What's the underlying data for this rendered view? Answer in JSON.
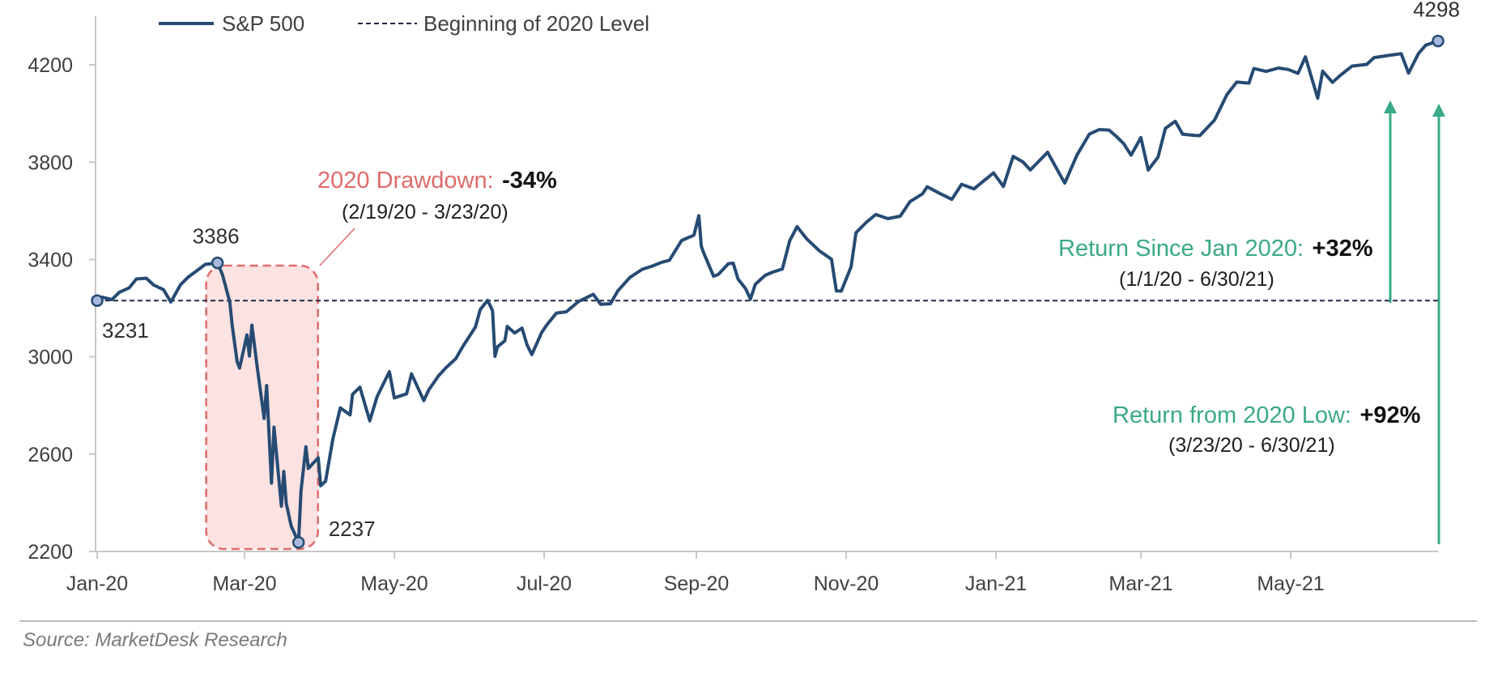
{
  "legend": {
    "series_label": "S&P 500",
    "baseline_label": "Beginning of 2020 Level"
  },
  "source": "Source: MarketDesk Research",
  "colors": {
    "line": "#264b73",
    "baseline": "#1f2a44",
    "drawdown_fill": "#fde2e2",
    "drawdown_stroke": "#e06b6b",
    "green": "#3aa988",
    "marker_fill": "#a8b8dc"
  },
  "annotations": {
    "drawdown": {
      "title": "2020 Drawdown:",
      "value": "-34%",
      "range": "(2/19/20 - 3/23/20)"
    },
    "since_jan": {
      "title": "Return Since Jan 2020:",
      "value": "+32%",
      "range": "(1/1/20 - 6/30/21)"
    },
    "from_low": {
      "title": "Return from 2020 Low:",
      "value": "+92%",
      "range": "(3/23/20 - 6/30/21)"
    }
  },
  "chart_data": {
    "type": "line",
    "ylim": [
      2200,
      4400
    ],
    "yticks": [
      2200,
      2600,
      3000,
      3400,
      3800,
      4200
    ],
    "xlim": [
      "2020-01-01",
      "2021-06-30"
    ],
    "xticks": [
      {
        "date": "2020-01-01",
        "label": "Jan-20"
      },
      {
        "date": "2020-03-01",
        "label": "Mar-20"
      },
      {
        "date": "2020-05-01",
        "label": "May-20"
      },
      {
        "date": "2020-07-01",
        "label": "Jul-20"
      },
      {
        "date": "2020-09-01",
        "label": "Sep-20"
      },
      {
        "date": "2020-11-01",
        "label": "Nov-20"
      },
      {
        "date": "2021-01-01",
        "label": "Jan-21"
      },
      {
        "date": "2021-03-01",
        "label": "Mar-21"
      },
      {
        "date": "2021-05-01",
        "label": "May-21"
      }
    ],
    "baseline": 3231,
    "labeled_points": [
      {
        "date": "2020-01-01",
        "value": 3231,
        "label": "3231"
      },
      {
        "date": "2020-02-19",
        "value": 3386,
        "label": "3386"
      },
      {
        "date": "2020-03-23",
        "value": 2237,
        "label": "2237"
      },
      {
        "date": "2021-06-30",
        "value": 4298,
        "label": "4298"
      }
    ],
    "highlight_range": [
      "2020-02-19",
      "2020-03-23"
    ],
    "series": [
      {
        "name": "S&P 500",
        "points": [
          [
            "2020-01-01",
            3231
          ],
          [
            "2020-01-03",
            3245
          ],
          [
            "2020-01-07",
            3235
          ],
          [
            "2020-01-10",
            3265
          ],
          [
            "2020-01-14",
            3283
          ],
          [
            "2020-01-17",
            3320
          ],
          [
            "2020-01-21",
            3323
          ],
          [
            "2020-01-24",
            3295
          ],
          [
            "2020-01-28",
            3276
          ],
          [
            "2020-01-31",
            3225
          ],
          [
            "2020-02-04",
            3297
          ],
          [
            "2020-02-07",
            3327
          ],
          [
            "2020-02-11",
            3357
          ],
          [
            "2020-02-14",
            3380
          ],
          [
            "2020-02-19",
            3386
          ],
          [
            "2020-02-21",
            3338
          ],
          [
            "2020-02-24",
            3225
          ],
          [
            "2020-02-25",
            3128
          ],
          [
            "2020-02-27",
            2979
          ],
          [
            "2020-02-28",
            2954
          ],
          [
            "2020-03-02",
            3090
          ],
          [
            "2020-03-03",
            3003
          ],
          [
            "2020-03-04",
            3130
          ],
          [
            "2020-03-06",
            2972
          ],
          [
            "2020-03-09",
            2747
          ],
          [
            "2020-03-10",
            2882
          ],
          [
            "2020-03-12",
            2481
          ],
          [
            "2020-03-13",
            2711
          ],
          [
            "2020-03-16",
            2386
          ],
          [
            "2020-03-17",
            2529
          ],
          [
            "2020-03-18",
            2398
          ],
          [
            "2020-03-20",
            2305
          ],
          [
            "2020-03-23",
            2237
          ],
          [
            "2020-03-24",
            2447
          ],
          [
            "2020-03-26",
            2630
          ],
          [
            "2020-03-27",
            2541
          ],
          [
            "2020-03-31",
            2585
          ],
          [
            "2020-04-01",
            2470
          ],
          [
            "2020-04-03",
            2489
          ],
          [
            "2020-04-06",
            2664
          ],
          [
            "2020-04-09",
            2790
          ],
          [
            "2020-04-13",
            2761
          ],
          [
            "2020-04-14",
            2846
          ],
          [
            "2020-04-17",
            2875
          ],
          [
            "2020-04-21",
            2737
          ],
          [
            "2020-04-24",
            2837
          ],
          [
            "2020-04-29",
            2939
          ],
          [
            "2020-05-01",
            2831
          ],
          [
            "2020-05-06",
            2848
          ],
          [
            "2020-05-08",
            2930
          ],
          [
            "2020-05-13",
            2820
          ],
          [
            "2020-05-15",
            2864
          ],
          [
            "2020-05-19",
            2922
          ],
          [
            "2020-05-22",
            2955
          ],
          [
            "2020-05-26",
            2992
          ],
          [
            "2020-05-29",
            3044
          ],
          [
            "2020-06-03",
            3122
          ],
          [
            "2020-06-05",
            3194
          ],
          [
            "2020-06-08",
            3232
          ],
          [
            "2020-06-10",
            3190
          ],
          [
            "2020-06-11",
            3002
          ],
          [
            "2020-06-12",
            3041
          ],
          [
            "2020-06-15",
            3066
          ],
          [
            "2020-06-16",
            3125
          ],
          [
            "2020-06-19",
            3098
          ],
          [
            "2020-06-22",
            3118
          ],
          [
            "2020-06-24",
            3050
          ],
          [
            "2020-06-26",
            3009
          ],
          [
            "2020-06-30",
            3100
          ],
          [
            "2020-07-02",
            3130
          ],
          [
            "2020-07-06",
            3180
          ],
          [
            "2020-07-10",
            3185
          ],
          [
            "2020-07-15",
            3227
          ],
          [
            "2020-07-21",
            3257
          ],
          [
            "2020-07-24",
            3216
          ],
          [
            "2020-07-28",
            3218
          ],
          [
            "2020-07-31",
            3271
          ],
          [
            "2020-08-05",
            3327
          ],
          [
            "2020-08-10",
            3360
          ],
          [
            "2020-08-14",
            3373
          ],
          [
            "2020-08-18",
            3389
          ],
          [
            "2020-08-21",
            3397
          ],
          [
            "2020-08-26",
            3478
          ],
          [
            "2020-08-31",
            3500
          ],
          [
            "2020-09-02",
            3580
          ],
          [
            "2020-09-03",
            3455
          ],
          [
            "2020-09-04",
            3427
          ],
          [
            "2020-09-08",
            3331
          ],
          [
            "2020-09-10",
            3339
          ],
          [
            "2020-09-14",
            3383
          ],
          [
            "2020-09-16",
            3385
          ],
          [
            "2020-09-18",
            3319
          ],
          [
            "2020-09-21",
            3281
          ],
          [
            "2020-09-23",
            3237
          ],
          [
            "2020-09-25",
            3298
          ],
          [
            "2020-09-29",
            3335
          ],
          [
            "2020-10-02",
            3348
          ],
          [
            "2020-10-06",
            3361
          ],
          [
            "2020-10-09",
            3477
          ],
          [
            "2020-10-12",
            3535
          ],
          [
            "2020-10-16",
            3484
          ],
          [
            "2020-10-21",
            3436
          ],
          [
            "2020-10-26",
            3401
          ],
          [
            "2020-10-28",
            3271
          ],
          [
            "2020-10-30",
            3270
          ],
          [
            "2020-11-03",
            3370
          ],
          [
            "2020-11-05",
            3510
          ],
          [
            "2020-11-09",
            3551
          ],
          [
            "2020-11-13",
            3585
          ],
          [
            "2020-11-18",
            3568
          ],
          [
            "2020-11-23",
            3578
          ],
          [
            "2020-11-27",
            3638
          ],
          [
            "2020-12-02",
            3669
          ],
          [
            "2020-12-04",
            3699
          ],
          [
            "2020-12-09",
            3672
          ],
          [
            "2020-12-14",
            3647
          ],
          [
            "2020-12-18",
            3709
          ],
          [
            "2020-12-23",
            3690
          ],
          [
            "2020-12-31",
            3756
          ],
          [
            "2021-01-04",
            3700
          ],
          [
            "2021-01-08",
            3824
          ],
          [
            "2021-01-12",
            3801
          ],
          [
            "2021-01-15",
            3768
          ],
          [
            "2021-01-22",
            3841
          ],
          [
            "2021-01-27",
            3750
          ],
          [
            "2021-01-29",
            3714
          ],
          [
            "2021-02-03",
            3830
          ],
          [
            "2021-02-08",
            3915
          ],
          [
            "2021-02-12",
            3934
          ],
          [
            "2021-02-16",
            3932
          ],
          [
            "2021-02-19",
            3906
          ],
          [
            "2021-02-22",
            3876
          ],
          [
            "2021-02-25",
            3829
          ],
          [
            "2021-03-01",
            3901
          ],
          [
            "2021-03-04",
            3768
          ],
          [
            "2021-03-08",
            3821
          ],
          [
            "2021-03-11",
            3939
          ],
          [
            "2021-03-15",
            3968
          ],
          [
            "2021-03-18",
            3915
          ],
          [
            "2021-03-23",
            3910
          ],
          [
            "2021-03-25",
            3909
          ],
          [
            "2021-03-31",
            3973
          ],
          [
            "2021-04-05",
            4077
          ],
          [
            "2021-04-09",
            4129
          ],
          [
            "2021-04-14",
            4125
          ],
          [
            "2021-04-16",
            4185
          ],
          [
            "2021-04-21",
            4173
          ],
          [
            "2021-04-26",
            4187
          ],
          [
            "2021-04-30",
            4181
          ],
          [
            "2021-05-04",
            4165
          ],
          [
            "2021-05-07",
            4233
          ],
          [
            "2021-05-12",
            4063
          ],
          [
            "2021-05-14",
            4174
          ],
          [
            "2021-05-18",
            4128
          ],
          [
            "2021-05-21",
            4155
          ],
          [
            "2021-05-26",
            4195
          ],
          [
            "2021-06-01",
            4202
          ],
          [
            "2021-06-04",
            4230
          ],
          [
            "2021-06-10",
            4239
          ],
          [
            "2021-06-15",
            4246
          ],
          [
            "2021-06-18",
            4166
          ],
          [
            "2021-06-22",
            4246
          ],
          [
            "2021-06-25",
            4281
          ],
          [
            "2021-06-30",
            4298
          ]
        ]
      }
    ]
  }
}
